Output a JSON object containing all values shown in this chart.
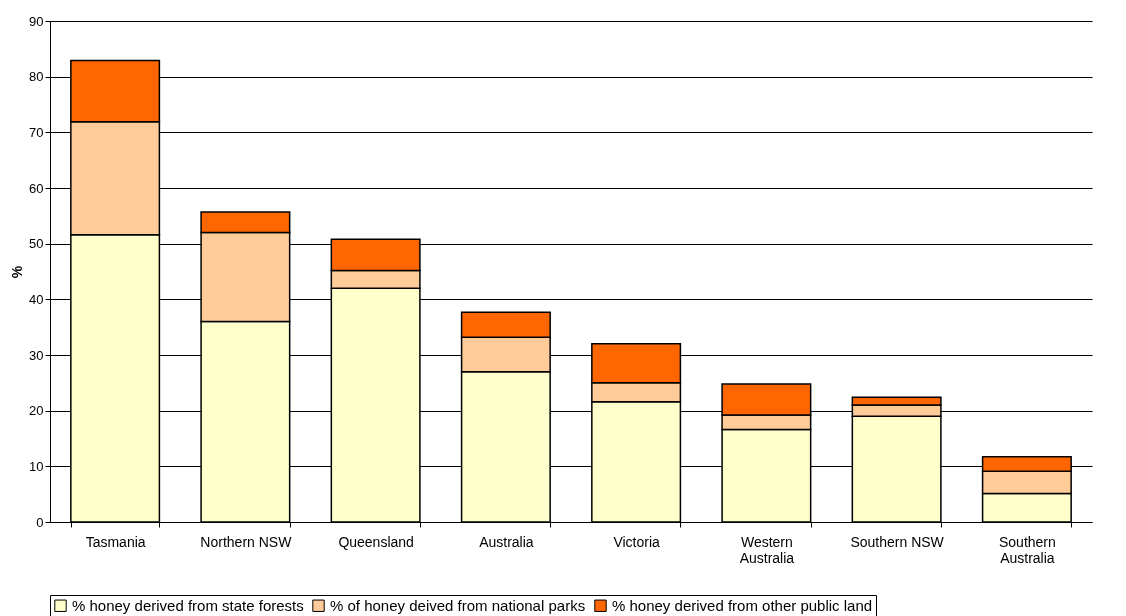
{
  "chart_data": {
    "type": "bar",
    "stacked": true,
    "ylabel": "%",
    "categories": [
      "Tasmania",
      "Northern NSW",
      "Queensland",
      "Australia",
      "Victoria",
      "Western Australia",
      "Southern NSW",
      "Southern Australia"
    ],
    "series": [
      {
        "name": "% honey derived from state forests",
        "color": "#ffffcc",
        "values": [
          51.6,
          36,
          42,
          27,
          21.6,
          16.6,
          19,
          5.1
        ]
      },
      {
        "name": "% of honey deived from national parks",
        "color": "#ffcc99",
        "values": [
          20.3,
          16,
          3.2,
          6.2,
          3.4,
          2.6,
          2.0,
          4.0
        ]
      },
      {
        "name": "% honey derived from other public land",
        "color": "#ff6600",
        "values": [
          11.0,
          3.7,
          5.6,
          4.5,
          7.0,
          5.6,
          1.4,
          2.6
        ]
      }
    ],
    "ylim": [
      0,
      90
    ],
    "yticks": [
      0,
      10,
      20,
      30,
      40,
      50,
      60,
      70,
      80,
      90
    ],
    "grid": "y",
    "legend": "bottom"
  }
}
